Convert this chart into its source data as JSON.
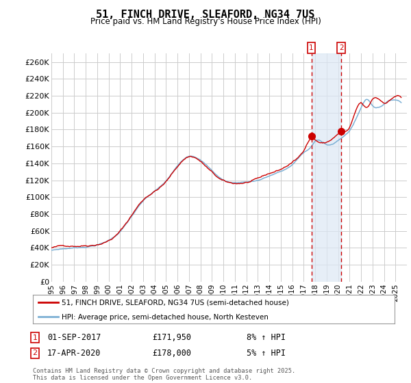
{
  "title": "51, FINCH DRIVE, SLEAFORD, NG34 7US",
  "subtitle": "Price paid vs. HM Land Registry's House Price Index (HPI)",
  "legend_line1": "51, FINCH DRIVE, SLEAFORD, NG34 7US (semi-detached house)",
  "legend_line2": "HPI: Average price, semi-detached house, North Kesteven",
  "annotation1_date": "01-SEP-2017",
  "annotation1_price": "£171,950",
  "annotation1_pct": "8% ↑ HPI",
  "annotation2_date": "17-APR-2020",
  "annotation2_price": "£178,000",
  "annotation2_pct": "5% ↑ HPI",
  "footer": "Contains HM Land Registry data © Crown copyright and database right 2025.\nThis data is licensed under the Open Government Licence v3.0.",
  "hpi_color": "#7bafd4",
  "price_color": "#cc0000",
  "annotation_color": "#cc0000",
  "background_color": "#ffffff",
  "grid_color": "#cccccc",
  "ylim": [
    0,
    270000
  ],
  "yticks": [
    0,
    20000,
    40000,
    60000,
    80000,
    100000,
    120000,
    140000,
    160000,
    180000,
    200000,
    220000,
    240000,
    260000
  ],
  "sale1_year": 2017.67,
  "sale1_price": 171950,
  "sale2_year": 2020.29,
  "sale2_price": 178000,
  "xmin": 1995,
  "xmax": 2026
}
